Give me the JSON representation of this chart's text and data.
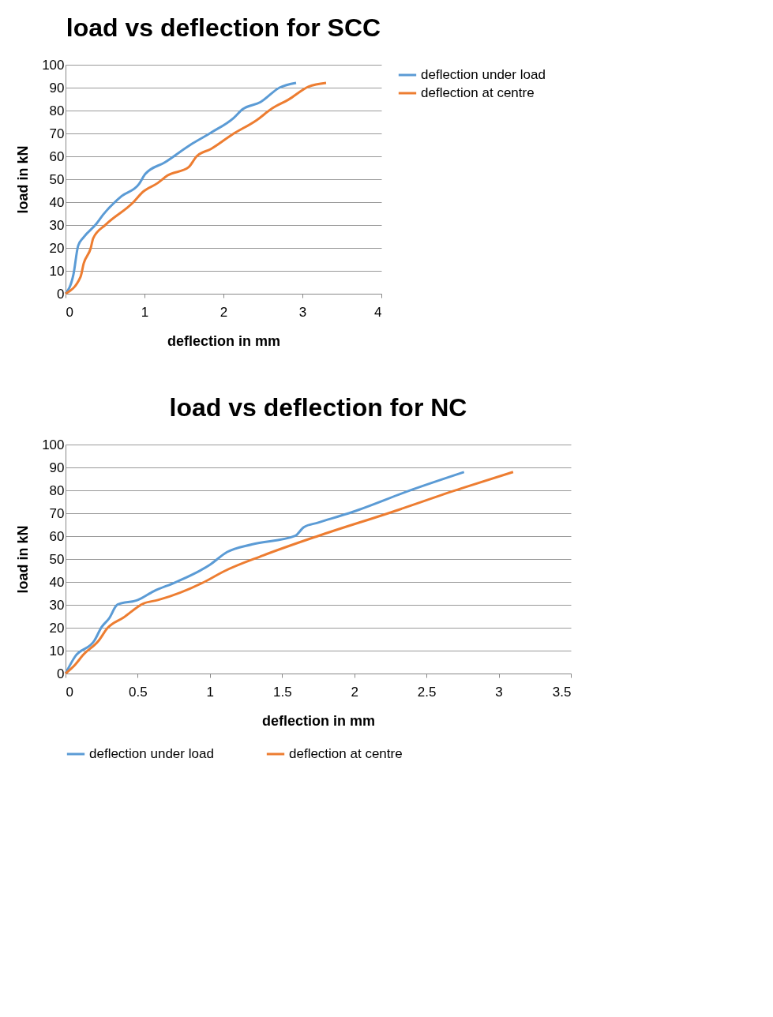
{
  "chart_data": [
    {
      "type": "line",
      "title": "load vs deflection for SCC",
      "xlabel": "deflection in mm",
      "ylabel": "load in kN",
      "xlim": [
        0,
        4
      ],
      "xticks": [
        0,
        1,
        2,
        3,
        4
      ],
      "ylim": [
        0,
        100
      ],
      "yticks": [
        0,
        10,
        20,
        30,
        40,
        50,
        60,
        70,
        80,
        90,
        100
      ],
      "grid": "y",
      "legend": "right",
      "marker": "none",
      "line_style": "solid",
      "series": [
        {
          "name": "deflection under load",
          "color": "#5b9bd5",
          "x": [
            0,
            0.1,
            0.16,
            0.23,
            0.39,
            0.48,
            0.71,
            0.93,
            1.01,
            1.26,
            1.58,
            1.85,
            2.13,
            2.24,
            2.47,
            2.71,
            2.92
          ],
          "values": [
            0,
            8.4,
            21,
            24.7,
            30.5,
            34.7,
            42.6,
            47.9,
            52.3,
            57.4,
            65,
            70.5,
            76.8,
            80.5,
            83.7,
            90,
            92.1
          ]
        },
        {
          "name": "deflection at centre",
          "color": "#ed7d31",
          "x": [
            0,
            0.19,
            0.23,
            0.32,
            0.35,
            0.51,
            0.86,
            0.97,
            1.17,
            1.29,
            1.56,
            1.66,
            1.84,
            2.11,
            2.42,
            2.62,
            2.82,
            3.08,
            3.3
          ],
          "values": [
            0,
            7.4,
            13.2,
            20,
            24.2,
            30.2,
            40,
            44.2,
            48.4,
            51.6,
            55.3,
            60,
            63.2,
            69.5,
            75.8,
            81,
            84.7,
            90.5,
            92.1
          ]
        }
      ]
    },
    {
      "type": "line",
      "title": "load vs deflection for NC",
      "xlabel": "deflection in mm",
      "ylabel": "load in kN",
      "xlim": [
        0,
        3.5
      ],
      "xticks": [
        0,
        0.5,
        1,
        1.5,
        2,
        2.5,
        3,
        3.5
      ],
      "ylim": [
        0,
        100
      ],
      "yticks": [
        0,
        10,
        20,
        30,
        40,
        50,
        60,
        70,
        80,
        90,
        100
      ],
      "grid": "y",
      "legend": "bottom",
      "marker": "none",
      "line_style": "solid",
      "series": [
        {
          "name": "deflection under load",
          "color": "#5b9bd5",
          "x": [
            0,
            0.067,
            0.2,
            0.25,
            0.3,
            0.36,
            0.5,
            0.61,
            0.76,
            1.0,
            1.12,
            1.29,
            1.59,
            1.65,
            1.75,
            1.99,
            2.4,
            2.76
          ],
          "values": [
            0,
            7.5,
            14.4,
            20.3,
            23.9,
            30.1,
            32.1,
            35.9,
            39.8,
            47.5,
            53.1,
            56.4,
            60.1,
            63.9,
            65.9,
            70.6,
            80.3,
            88
          ]
        },
        {
          "name": "deflection at centre",
          "color": "#ed7d31",
          "x": [
            0,
            0.067,
            0.12,
            0.23,
            0.29,
            0.4,
            0.54,
            0.64,
            0.98,
            1.09,
            1.37,
            1.75,
            2.24,
            2.74,
            3.1
          ],
          "values": [
            0,
            3.9,
            8,
            14.4,
            19.8,
            24.4,
            30.6,
            32.1,
            40.6,
            44.4,
            51.6,
            60.1,
            70.1,
            80.8,
            88
          ]
        }
      ]
    }
  ]
}
